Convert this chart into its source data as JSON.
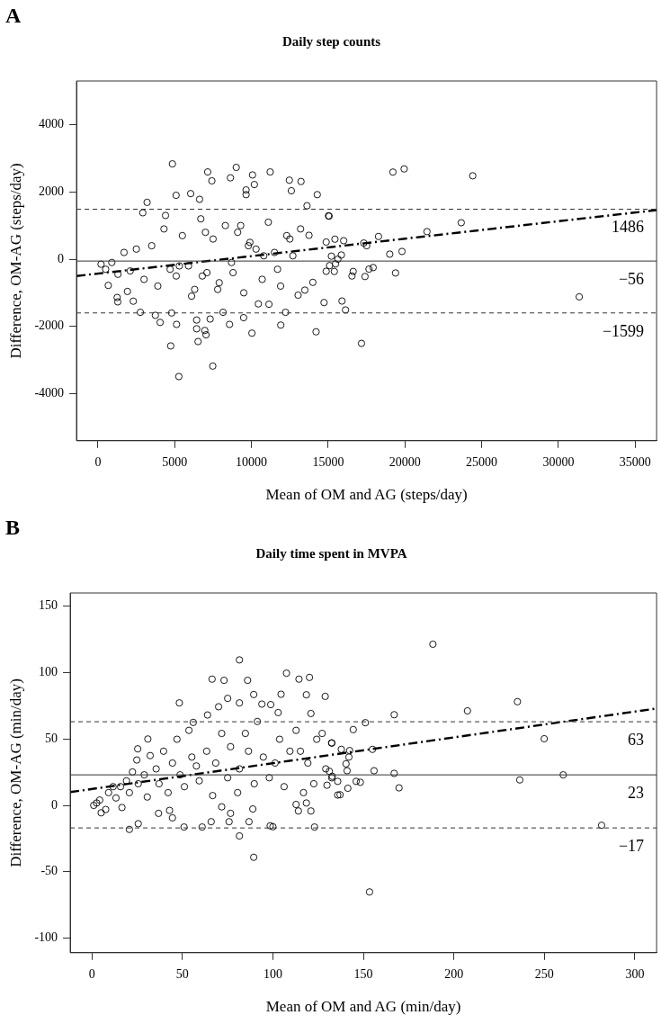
{
  "chart_data": [
    {
      "type": "scatter",
      "title": "Daily step counts",
      "xlabel": "Mean of OM and AG (steps/day)",
      "ylabel": "Difference, OM-AG (steps/day)",
      "annotations": [
        "A"
      ],
      "xlim": [
        -1400,
        36400
      ],
      "xticks": [
        0,
        5000,
        10000,
        15000,
        20000,
        25000,
        30000,
        35000
      ],
      "ylim": [
        -5400,
        5300
      ],
      "yticks": [
        -4000,
        -2000,
        0,
        2000,
        4000
      ],
      "grid": false,
      "legend": false,
      "marker": "circle",
      "ref_lines": [
        {
          "axis": "y",
          "value": 1486,
          "label": "1486",
          "line_style": "dashed"
        },
        {
          "axis": "y",
          "value": -56,
          "label": "−56",
          "line_style": "solid"
        },
        {
          "axis": "y",
          "value": -1599,
          "label": "−1599",
          "line_style": "dashed"
        }
      ],
      "series": [
        {
          "color": "#000000",
          "x": [
            4850,
            7150,
            7420,
            9010,
            8630,
            10070,
            10190,
            11220,
            12470,
            13230,
            12600,
            14290,
            5090,
            6040,
            6620,
            9650,
            9650,
            3200,
            2920,
            13620,
            5270,
            7480,
            4740,
            6520,
            7040,
            6960,
            6430,
            7310,
            6430,
            5120,
            8570,
            10030,
            11910,
            14210,
            4050,
            12220,
            9490,
            8150,
            2760,
            3740,
            4800,
            14730,
            11140,
            10450,
            1290,
            2300,
            1250,
            1920,
            670,
            15060,
            13750,
            14870,
            15480,
            14870,
            14000,
            13480,
            13040,
            19220,
            19950,
            24420,
            23670,
            21440,
            18280,
            17320,
            17510,
            16010,
            15440,
            15020,
            19010,
            19810,
            15860,
            15210,
            15630,
            15090,
            15400,
            16630,
            16550,
            17400,
            17660,
            17930,
            19390,
            15900,
            16130,
            17170,
            31360,
            200,
            500,
            900,
            1300,
            1700,
            2100,
            2500,
            3000,
            3500,
            3900,
            4300,
            4700,
            5100,
            5500,
            5900,
            6300,
            6700,
            7100,
            7500,
            7900,
            8300,
            8700,
            9100,
            9500,
            9900,
            10300,
            10700,
            11100,
            11500,
            11900,
            12300,
            12700,
            4400,
            5300,
            6100,
            7000,
            7800,
            8800,
            9800,
            10800,
            11700,
            12500,
            13200,
            6800,
            9300
          ],
          "values": [
            2835,
            2595,
            2330,
            2730,
            2420,
            2505,
            2220,
            2595,
            2350,
            2310,
            2035,
            1920,
            1900,
            1950,
            1780,
            2060,
            1920,
            1690,
            1380,
            1590,
            -3490,
            -3180,
            -2580,
            -2450,
            -2250,
            -2120,
            -2070,
            -1780,
            -1810,
            -1940,
            -1940,
            -2200,
            -1960,
            -2160,
            -1880,
            -1580,
            -1740,
            -1580,
            -1580,
            -1670,
            -1600,
            -1290,
            -1340,
            -1330,
            -1270,
            -1250,
            -1140,
            -960,
            -780,
            1280,
            710,
            510,
            -140,
            -360,
            -690,
            -920,
            -1070,
            2590,
            2685,
            2480,
            1085,
            820,
            675,
            480,
            400,
            550,
            595,
            1290,
            150,
            230,
            125,
            90,
            0,
            -190,
            -365,
            -365,
            -500,
            -515,
            -295,
            -250,
            -410,
            -1245,
            -1510,
            -2505,
            -1120,
            -150,
            -300,
            -100,
            -450,
            200,
            -350,
            300,
            -600,
            400,
            -800,
            900,
            -300,
            -500,
            700,
            -200,
            -900,
            1200,
            -400,
            600,
            -700,
            1000,
            -100,
            800,
            -1000,
            500,
            300,
            -600,
            1100,
            200,
            -800,
            700,
            100,
            1300,
            -200,
            -1100,
            800,
            -900,
            -400,
            400,
            100,
            -300,
            600,
            900,
            -500,
            1000
          ]
        },
        {
          "type": "line",
          "color": "#000000",
          "line_style": "dashed",
          "marker": "none",
          "x": [
            -1400,
            36400
          ],
          "values": [
            -500,
            1460
          ]
        }
      ]
    },
    {
      "type": "scatter",
      "title": "Daily time spent in MVPA",
      "xlabel": "Mean of OM and AG (min/day)",
      "ylabel": "Difference, OM-AG (min/day)",
      "annotations": [
        "B"
      ],
      "xlim": [
        -12,
        312
      ],
      "xticks": [
        0,
        50,
        100,
        150,
        200,
        250,
        300
      ],
      "ylim": [
        -111,
        160
      ],
      "yticks": [
        -100,
        -50,
        0,
        50,
        100,
        150
      ],
      "grid": false,
      "legend": false,
      "marker": "circle",
      "ref_lines": [
        {
          "axis": "y",
          "value": 63,
          "label": "63",
          "line_style": "dashed"
        },
        {
          "axis": "y",
          "value": 23,
          "label": "23",
          "line_style": "solid"
        },
        {
          "axis": "y",
          "value": -17,
          "label": "−17",
          "line_style": "dashed"
        }
      ],
      "series": [
        {
          "color": "#000000",
          "x": [
            81.5,
            66.4,
            73,
            86,
            107.5,
            114.4,
            120.2,
            104.5,
            118.5,
            128.9,
            48.3,
            75,
            81.5,
            89.4,
            93.9,
            98.8,
            102.9,
            121,
            70,
            63.9,
            56,
            30.9,
            25.3,
            132.5,
            127.2,
            20.7,
            25.6,
            50.9,
            60.9,
            65.9,
            75.8,
            86.8,
            98.5,
            100,
            123,
            81.5,
            89.4,
            42.9,
            36.8,
            44.5,
            71.7,
            76.6,
            88.9,
            114.1,
            121,
            112.8,
            118.5,
            135.8,
            1,
            2.6,
            4.3,
            5.1,
            7.6,
            9.2,
            11.7,
            13.3,
            15.8,
            16.6,
            19.1,
            20.7,
            22.4,
            24.8,
            25.6,
            28.9,
            30.6,
            32.2,
            35.5,
            37.1,
            39.6,
            42.1,
            44.5,
            47,
            48.7,
            51.1,
            53.6,
            55.2,
            57.7,
            59.3,
            63.4,
            66.7,
            68.4,
            71.7,
            75,
            76.6,
            80.5,
            81.5,
            84.8,
            86.5,
            89.7,
            91.4,
            94.7,
            98,
            101.2,
            103.7,
            106.2,
            109.4,
            112.8,
            115.2,
            116.9,
            119.3,
            122.6,
            124.2,
            129.2,
            132.5,
            188.4,
            235.1,
            207.5,
            167,
            151.1,
            144.4,
            249.9,
            132.5,
            137.8,
            142.4,
            155,
            142,
            140.4,
            141,
            155.9,
            167,
            131.2,
            132.8,
            135.8,
            129.9,
            137.1,
            141.4,
            146,
            148.3,
            169.7,
            236.4,
            260.4,
            281.6,
            153.4
          ],
          "values": [
            109.6,
            95.1,
            94.2,
            94.2,
            99.6,
            95.1,
            96.4,
            83.7,
            83.3,
            82.1,
            77.2,
            80.6,
            77.2,
            83.5,
            76.3,
            75.9,
            69.9,
            69.2,
            74.3,
            68.1,
            62.5,
            50,
            42.6,
            46.9,
            54.2,
            -18.1,
            -13.8,
            -16.3,
            -16.3,
            -12.3,
            -12.3,
            -12.3,
            -15.4,
            -16.1,
            -16.3,
            -23,
            -39.1,
            -3.8,
            -6,
            -9.4,
            -1.1,
            -6,
            -2.7,
            -4.2,
            -4.2,
            0.7,
            1.8,
            7.8,
            0,
            1.8,
            4,
            -5.6,
            -3.1,
            9.6,
            14.1,
            5.6,
            14.1,
            -1.6,
            18.5,
            9.6,
            25.2,
            34.2,
            16.3,
            23,
            6.3,
            37.5,
            27.5,
            16.3,
            40.8,
            9.6,
            31.9,
            49.8,
            23,
            14.1,
            56.5,
            36.4,
            29.7,
            18.5,
            40.8,
            7.4,
            31.9,
            54.2,
            20.8,
            44.2,
            9.6,
            27.5,
            54.2,
            40.8,
            16.3,
            63.2,
            36.4,
            20.8,
            31.9,
            49.8,
            14.1,
            40.8,
            56.5,
            40.8,
            9.6,
            31.9,
            16.3,
            49.8,
            27.5,
            20.8,
            121.4,
            78.1,
            71.2,
            68.3,
            62.3,
            57.1,
            50.2,
            47.1,
            42.2,
            41.3,
            42.2,
            36.4,
            31.3,
            26.1,
            26.1,
            24.1,
            25.7,
            21.9,
            18.1,
            15.2,
            8,
            12.9,
            18.1,
            17.4,
            13.2,
            19.2,
            23,
            -15,
            -65.2
          ]
        },
        {
          "type": "line",
          "color": "#000000",
          "line_style": "dashed",
          "marker": "none",
          "x": [
            -12,
            312
          ],
          "values": [
            10,
            73
          ]
        }
      ]
    }
  ]
}
